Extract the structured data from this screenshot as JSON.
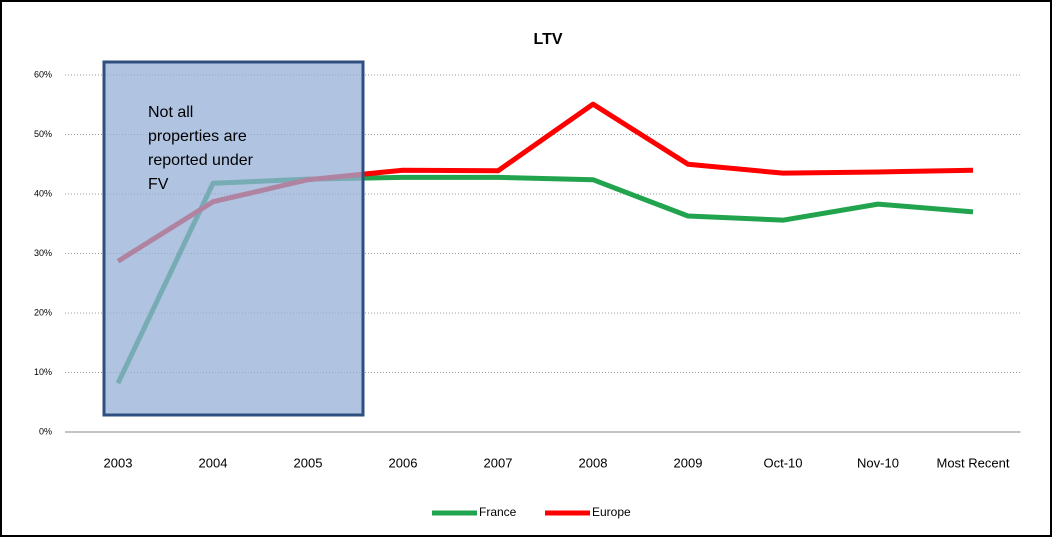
{
  "chart_data": {
    "type": "line",
    "title": "LTV",
    "categories": [
      "2003",
      "2004",
      "2005",
      "2006",
      "2007",
      "2008",
      "2009",
      "Oct-10",
      "Nov-10",
      "Most Recent"
    ],
    "series": [
      {
        "name": "France",
        "color": "#22a44f",
        "values": [
          8.2,
          41.8,
          42.5,
          42.8,
          42.8,
          42.4,
          36.3,
          35.6,
          38.3,
          37.0
        ]
      },
      {
        "name": "Europe",
        "color": "#ff0000",
        "values": [
          28.7,
          38.7,
          42.4,
          44.0,
          43.9,
          55.1,
          45.0,
          43.5,
          43.7,
          44.0
        ]
      }
    ],
    "ylim": [
      0,
      60
    ],
    "yticks": [
      {
        "value": 0,
        "label": "0%"
      },
      {
        "value": 10,
        "label": "10%"
      },
      {
        "value": 20,
        "label": "20%"
      },
      {
        "value": 30,
        "label": "30%"
      },
      {
        "value": 40,
        "label": "40%"
      },
      {
        "value": 50,
        "label": "50%"
      },
      {
        "value": 60,
        "label": "60%"
      }
    ],
    "grid": true,
    "legend": "bottom",
    "annotation": [
      "Not all",
      "properties are",
      "reported under",
      "FV"
    ]
  }
}
